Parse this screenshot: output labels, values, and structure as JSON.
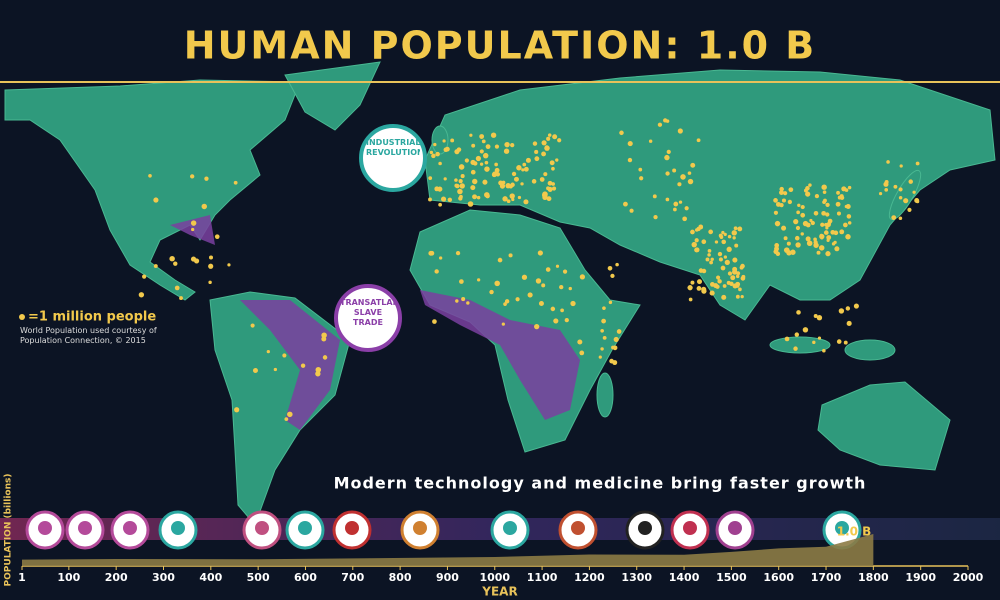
{
  "title": "HUMAN POPULATION: 1.0 B",
  "legend": {
    "label": "=1 million people",
    "credit": "World Population used courtesy of Population Connection, © 2015"
  },
  "events": [
    {
      "label": "INDUSTRIAL REVOLUTION"
    },
    {
      "label": "TRANSATLANTIC SLAVE TRADE"
    }
  ],
  "caption": "Modern technology and medicine bring faster growth",
  "timeline": {
    "type": "area",
    "x_label": "YEAR",
    "y_label": "POPULATION (billions)",
    "xlim": [
      1,
      2000
    ],
    "xticks": [
      1,
      100,
      200,
      300,
      400,
      500,
      600,
      700,
      800,
      900,
      1000,
      1100,
      1200,
      1300,
      1400,
      1500,
      1600,
      1700,
      1800,
      1900,
      2000
    ],
    "x": [
      1,
      200,
      500,
      1000,
      1200,
      1400,
      1500,
      1600,
      1700,
      1800
    ],
    "values": [
      0.2,
      0.22,
      0.21,
      0.28,
      0.36,
      0.35,
      0.44,
      0.55,
      0.6,
      1.0
    ],
    "value_labels": [
      null,
      null,
      null,
      null,
      null,
      null,
      null,
      null,
      null,
      "1.0 B"
    ],
    "color": "#8c7b45"
  }
}
